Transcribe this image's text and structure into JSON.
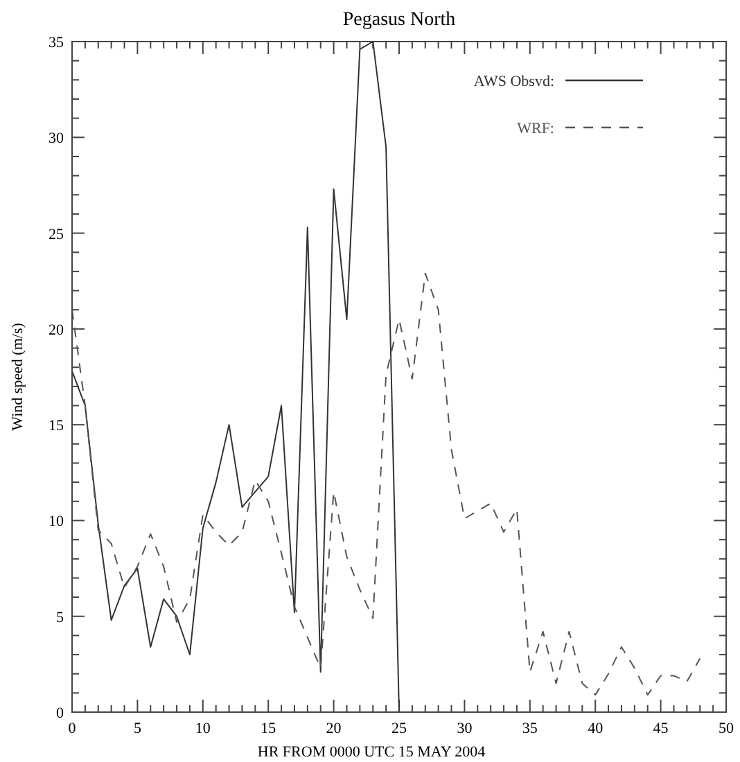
{
  "chart_data": {
    "type": "line",
    "title": "Pegasus North",
    "xlabel": "HR FROM 0000 UTC 15 MAY 2004",
    "ylabel": "Wind speed (m/s)",
    "xlim": [
      0,
      50
    ],
    "ylim": [
      0,
      35
    ],
    "xticks": [
      0,
      {
        "value": 1,
        "label": null
      },
      {
        "value": 2,
        "label": null
      },
      {
        "value": 3,
        "label": null
      },
      {
        "value": 4,
        "label": null
      },
      5,
      {
        "value": 6,
        "label": null
      },
      {
        "value": 7,
        "label": null
      },
      {
        "value": 8,
        "label": null
      },
      {
        "value": 9,
        "label": null
      },
      10,
      {
        "value": 11,
        "label": null
      },
      {
        "value": 12,
        "label": null
      },
      {
        "value": 13,
        "label": null
      },
      {
        "value": 14,
        "label": null
      },
      15,
      {
        "value": 16,
        "label": null
      },
      {
        "value": 17,
        "label": null
      },
      {
        "value": 18,
        "label": null
      },
      {
        "value": 19,
        "label": null
      },
      20,
      {
        "value": 21,
        "label": null
      },
      {
        "value": 22,
        "label": null
      },
      {
        "value": 23,
        "label": null
      },
      {
        "value": 24,
        "label": null
      },
      25,
      {
        "value": 26,
        "label": null
      },
      {
        "value": 27,
        "label": null
      },
      {
        "value": 28,
        "label": null
      },
      {
        "value": 29,
        "label": null
      },
      30,
      {
        "value": 31,
        "label": null
      },
      {
        "value": 32,
        "label": null
      },
      {
        "value": 33,
        "label": null
      },
      {
        "value": 34,
        "label": null
      },
      35,
      {
        "value": 36,
        "label": null
      },
      {
        "value": 37,
        "label": null
      },
      {
        "value": 38,
        "label": null
      },
      {
        "value": 39,
        "label": null
      },
      40,
      {
        "value": 41,
        "label": null
      },
      {
        "value": 42,
        "label": null
      },
      {
        "value": 43,
        "label": null
      },
      {
        "value": 44,
        "label": null
      },
      45,
      {
        "value": 46,
        "label": null
      },
      {
        "value": 47,
        "label": null
      },
      {
        "value": 48,
        "label": null
      },
      {
        "value": 49,
        "label": null
      },
      50
    ],
    "yticks": [
      0,
      {
        "value": 1,
        "label": null
      },
      {
        "value": 2,
        "label": null
      },
      {
        "value": 3,
        "label": null
      },
      {
        "value": 4,
        "label": null
      },
      5,
      {
        "value": 6,
        "label": null
      },
      {
        "value": 7,
        "label": null
      },
      {
        "value": 8,
        "label": null
      },
      {
        "value": 9,
        "label": null
      },
      10,
      {
        "value": 11,
        "label": null
      },
      {
        "value": 12,
        "label": null
      },
      {
        "value": 13,
        "label": null
      },
      {
        "value": 14,
        "label": null
      },
      15,
      {
        "value": 16,
        "label": null
      },
      {
        "value": 17,
        "label": null
      },
      {
        "value": 18,
        "label": null
      },
      {
        "value": 19,
        "label": null
      },
      20,
      {
        "value": 21,
        "label": null
      },
      {
        "value": 22,
        "label": null
      },
      {
        "value": 23,
        "label": null
      },
      {
        "value": 24,
        "label": null
      },
      25,
      {
        "value": 26,
        "label": null
      },
      {
        "value": 27,
        "label": null
      },
      {
        "value": 28,
        "label": null
      },
      {
        "value": 29,
        "label": null
      },
      30,
      {
        "value": 31,
        "label": null
      },
      {
        "value": 32,
        "label": null
      },
      {
        "value": 33,
        "label": null
      },
      {
        "value": 34,
        "label": null
      },
      35
    ],
    "legend": "top right",
    "grid": false,
    "series": [
      {
        "name": "AWS Obsvd:",
        "color": "#333333",
        "line_style": "solid",
        "x": [
          0,
          1,
          2,
          3,
          4,
          5,
          6,
          7,
          8,
          9,
          10,
          11,
          12,
          13,
          14,
          15,
          16,
          17,
          18,
          19,
          20,
          21,
          22,
          23,
          24,
          25
        ],
        "values": [
          17.8,
          16.0,
          9.8,
          4.8,
          6.6,
          7.5,
          3.4,
          5.9,
          5.0,
          3.0,
          9.6,
          12.0,
          15.0,
          10.7,
          11.5,
          12.3,
          16.0,
          5.2,
          25.3,
          2.1,
          27.3,
          20.5,
          34.6,
          35,
          29.5,
          0
        ]
      },
      {
        "name": "WRF:",
        "color": "#555555",
        "line_style": "dashed",
        "x": [
          0,
          1,
          2,
          3,
          4,
          5,
          6,
          7,
          8,
          9,
          10,
          11,
          12,
          13,
          14,
          15,
          16,
          17,
          18,
          19,
          20,
          21,
          22,
          23,
          24,
          25,
          26,
          27,
          28,
          29,
          30,
          31,
          32,
          33,
          34,
          35,
          36,
          37,
          38,
          39,
          40,
          41,
          42,
          43,
          44,
          45,
          46,
          47,
          48
        ],
        "values": [
          21.0,
          16.0,
          9.5,
          8.8,
          6.5,
          7.6,
          9.3,
          7.6,
          4.7,
          5.9,
          10.3,
          9.4,
          8.7,
          9.4,
          12.1,
          11.0,
          8.3,
          5.5,
          3.9,
          2.3,
          11.5,
          8.1,
          6.4,
          4.9,
          17.6,
          20.5,
          17.4,
          22.9,
          21.0,
          13.7,
          10.1,
          10.5,
          10.9,
          9.4,
          10.6,
          2.1,
          4.2,
          1.5,
          4.2,
          1.5,
          0.9,
          2.0,
          3.4,
          2.3,
          0.9,
          1.9,
          1.9,
          1.6,
          2.8
        ]
      }
    ]
  }
}
